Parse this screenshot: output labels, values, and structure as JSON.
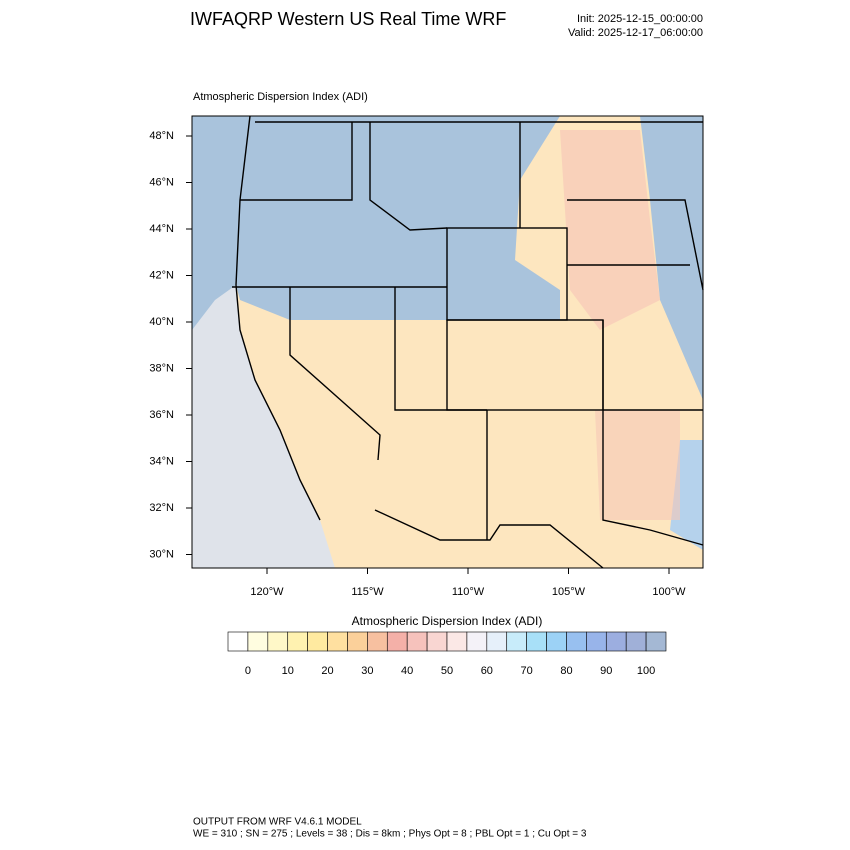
{
  "header": {
    "title": "IWFAQRP Western US Real Time WRF",
    "init": "Init: 2025-12-15_00:00:00",
    "valid": "Valid: 2025-12-17_06:00:00"
  },
  "map": {
    "title": "Atmospheric Dispersion Index   (ADI)",
    "lat_labels": [
      "48°N",
      "46°N",
      "44°N",
      "42°N",
      "40°N",
      "38°N",
      "36°N",
      "34°N",
      "32°N",
      "30°N"
    ],
    "lon_labels": [
      "120°W",
      "115°W",
      "110°W",
      "105°W",
      "100°W"
    ]
  },
  "colorbar": {
    "title": "Atmospheric Dispersion Index  (ADI)",
    "labels": [
      0,
      10,
      20,
      30,
      40,
      50,
      60,
      70,
      80,
      90,
      100
    ],
    "colors": [
      "#ffffff",
      "#fffde0",
      "#fff8c8",
      "#fff2b0",
      "#ffeaa0",
      "#ffe0a0",
      "#fbd09a",
      "#f7c0a0",
      "#f4b0a8",
      "#f6c2bc",
      "#f9d6d2",
      "#fbe8e6",
      "#f4f2f8",
      "#e6f0fa",
      "#c8ecfa",
      "#a8e0f8",
      "#9cd2f6",
      "#98c0f0",
      "#98b4ea",
      "#9caee0",
      "#a0b0d8",
      "#a4b8d4"
    ]
  },
  "footer": {
    "line1": "OUTPUT FROM WRF V4.6.1 MODEL",
    "line2": "WE = 310 ; SN = 275 ; Levels = 38 ; Dis = 8km ; Phys Opt = 8 ; PBL Opt = 1 ; Cu Opt = 3"
  }
}
